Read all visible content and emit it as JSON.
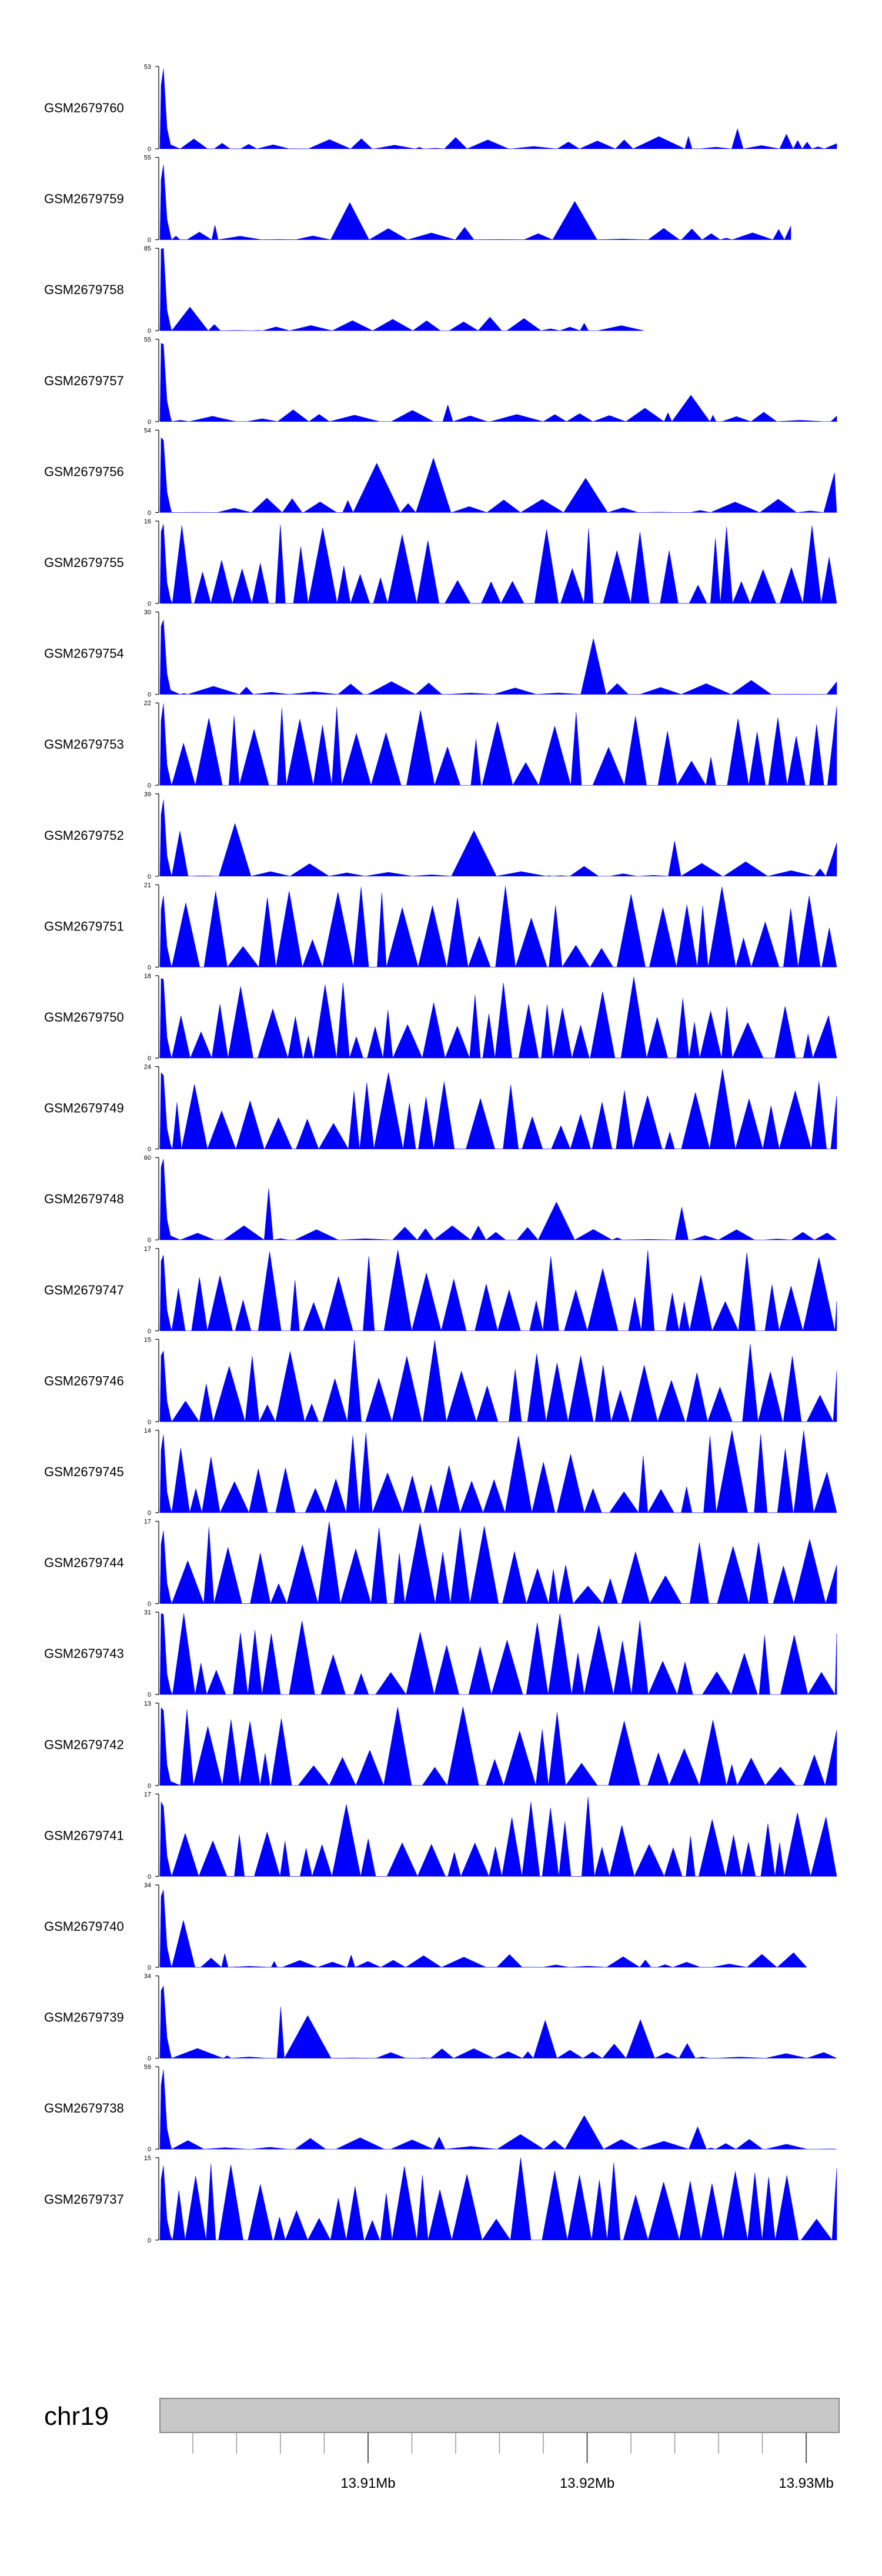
{
  "chart_data": {
    "type": "area",
    "title": "",
    "fill_color": "#0000ff",
    "x_range_mb": [
      13.9005,
      13.9315
    ],
    "tracks": [
      {
        "name": "GSM2679760",
        "ymax": 53,
        "ymin": 0
      },
      {
        "name": "GSM2679759",
        "ymax": 55,
        "ymin": 0
      },
      {
        "name": "GSM2679758",
        "ymax": 85,
        "ymin": 0
      },
      {
        "name": "GSM2679757",
        "ymax": 55,
        "ymin": 0
      },
      {
        "name": "GSM2679756",
        "ymax": 54,
        "ymin": 0
      },
      {
        "name": "GSM2679755",
        "ymax": 16,
        "ymin": 0
      },
      {
        "name": "GSM2679754",
        "ymax": 30,
        "ymin": 0
      },
      {
        "name": "GSM2679753",
        "ymax": 22,
        "ymin": 0
      },
      {
        "name": "GSM2679752",
        "ymax": 39,
        "ymin": 0
      },
      {
        "name": "GSM2679751",
        "ymax": 21,
        "ymin": 0
      },
      {
        "name": "GSM2679750",
        "ymax": 18,
        "ymin": 0
      },
      {
        "name": "GSM2679749",
        "ymax": 24,
        "ymin": 0
      },
      {
        "name": "GSM2679748",
        "ymax": 60,
        "ymin": 0
      },
      {
        "name": "GSM2679747",
        "ymax": 17,
        "ymin": 0
      },
      {
        "name": "GSM2679746",
        "ymax": 15,
        "ymin": 0
      },
      {
        "name": "GSM2679745",
        "ymax": 14,
        "ymin": 0
      },
      {
        "name": "GSM2679744",
        "ymax": 17,
        "ymin": 0
      },
      {
        "name": "GSM2679743",
        "ymax": 31,
        "ymin": 0
      },
      {
        "name": "GSM2679742",
        "ymax": 13,
        "ymin": 0
      },
      {
        "name": "GSM2679741",
        "ymax": 17,
        "ymin": 0
      },
      {
        "name": "GSM2679740",
        "ymax": 34,
        "ymin": 0
      },
      {
        "name": "GSM2679739",
        "ymax": 34,
        "ymin": 0
      },
      {
        "name": "GSM2679738",
        "ymax": 59,
        "ymin": 0
      },
      {
        "name": "GSM2679737",
        "ymax": 15,
        "ymin": 0
      }
    ],
    "ideogram": {
      "chromosome": "chr19",
      "ticks_mb": [
        13.91,
        13.92,
        13.93
      ],
      "tick_labels": [
        "13.91Mb",
        "13.92Mb",
        "13.93Mb"
      ]
    }
  }
}
